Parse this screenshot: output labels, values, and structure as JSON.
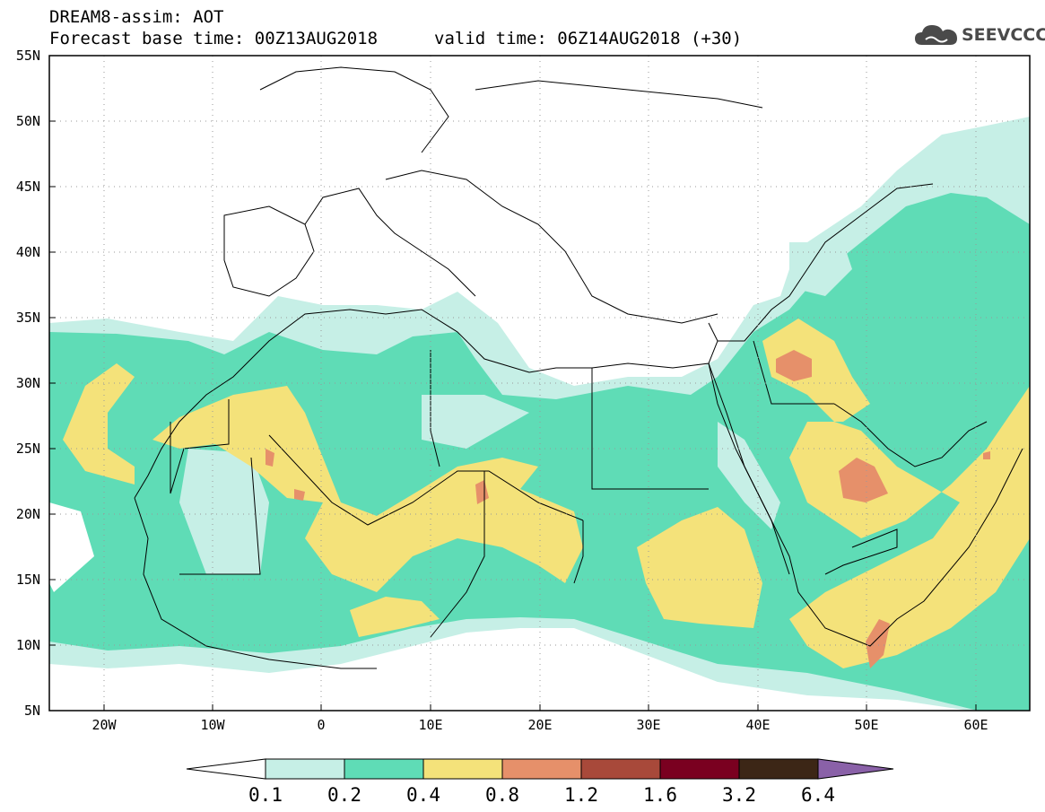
{
  "title": {
    "line1": "DREAM8-assim: AOT",
    "line2": "Forecast base time: 00Z13AUG2018",
    "valid": "valid time: 06Z14AUG2018 (+30)"
  },
  "logo": {
    "text": "SEEVCCC",
    "icon": "cloud-icon"
  },
  "axes": {
    "lat_labels": [
      "55N",
      "50N",
      "45N",
      "40N",
      "35N",
      "30N",
      "25N",
      "20N",
      "15N",
      "10N",
      "5N"
    ],
    "lon_labels": [
      "20W",
      "10W",
      "0",
      "10E",
      "20E",
      "30E",
      "40E",
      "50E",
      "60E"
    ]
  },
  "colorbar": {
    "labels": [
      "0.1",
      "0.2",
      "0.4",
      "0.8",
      "1.2",
      "1.6",
      "3.2",
      "6.4"
    ],
    "colors": [
      "#ffffff",
      "#c6efe6",
      "#5fdcb6",
      "#f4e27a",
      "#e6906a",
      "#a8493a",
      "#7a0020",
      "#3c2616",
      "#8a61a8"
    ]
  },
  "legend_levels": {
    "c1": "#c6efe6",
    "c2": "#5fdcb6",
    "c3": "#f4e27a",
    "c4": "#e6906a",
    "c5": "#a8493a"
  }
}
